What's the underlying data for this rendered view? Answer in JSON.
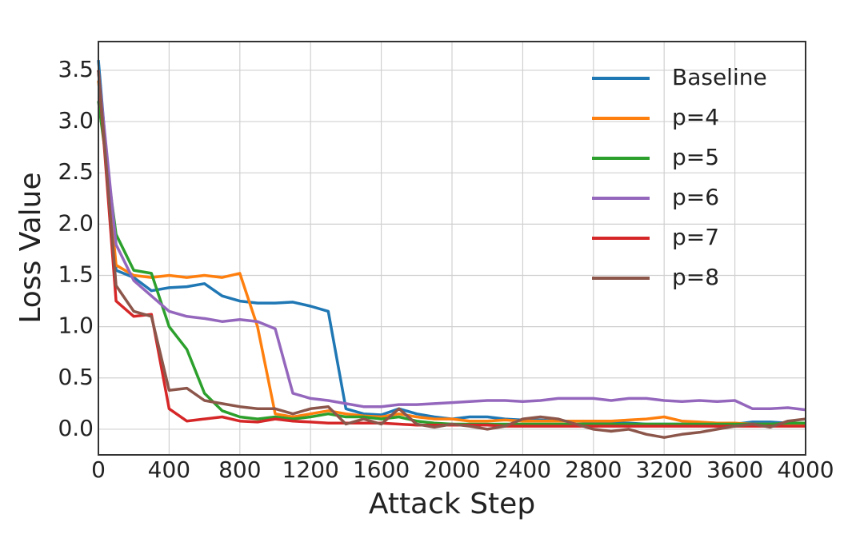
{
  "chart_data": {
    "type": "line",
    "xlabel": "Attack Step",
    "ylabel": "Loss Value",
    "x": [
      0,
      100,
      200,
      300,
      400,
      500,
      600,
      700,
      800,
      900,
      1000,
      1100,
      1200,
      1300,
      1400,
      1500,
      1600,
      1700,
      1800,
      1900,
      2000,
      2100,
      2200,
      2300,
      2400,
      2500,
      2600,
      2700,
      2800,
      2900,
      3000,
      3100,
      3200,
      3300,
      3400,
      3500,
      3600,
      3700,
      3800,
      3900,
      4000
    ],
    "series": [
      {
        "name": "Baseline",
        "color": "#1f77b4",
        "values": [
          3.6,
          1.55,
          1.48,
          1.35,
          1.38,
          1.39,
          1.42,
          1.3,
          1.25,
          1.23,
          1.23,
          1.24,
          1.2,
          1.15,
          0.2,
          0.15,
          0.14,
          0.2,
          0.15,
          0.12,
          0.1,
          0.12,
          0.12,
          0.1,
          0.09,
          0.09,
          0.08,
          0.08,
          0.07,
          0.06,
          0.06,
          0.05,
          0.05,
          0.05,
          0.05,
          0.05,
          0.05,
          0.07,
          0.07,
          0.06,
          0.05
        ]
      },
      {
        "name": "p=4",
        "color": "#ff7f0e",
        "values": [
          3.4,
          1.6,
          1.5,
          1.48,
          1.5,
          1.48,
          1.5,
          1.48,
          1.52,
          1.0,
          0.15,
          0.12,
          0.15,
          0.18,
          0.15,
          0.13,
          0.12,
          0.15,
          0.12,
          0.1,
          0.1,
          0.08,
          0.08,
          0.09,
          0.08,
          0.08,
          0.08,
          0.08,
          0.08,
          0.08,
          0.09,
          0.1,
          0.12,
          0.08,
          0.07,
          0.06,
          0.06,
          0.05,
          0.05,
          0.05,
          0.05
        ]
      },
      {
        "name": "p=5",
        "color": "#2ca02c",
        "values": [
          3.2,
          1.9,
          1.55,
          1.52,
          1.0,
          0.78,
          0.35,
          0.18,
          0.12,
          0.1,
          0.12,
          0.1,
          0.12,
          0.15,
          0.12,
          0.12,
          0.1,
          0.12,
          0.08,
          0.06,
          0.05,
          0.05,
          0.05,
          0.05,
          0.05,
          0.05,
          0.05,
          0.05,
          0.05,
          0.05,
          0.05,
          0.05,
          0.05,
          0.05,
          0.05,
          0.05,
          0.05,
          0.05,
          0.05,
          0.06,
          0.06
        ]
      },
      {
        "name": "p=6",
        "color": "#9467bd",
        "values": [
          3.5,
          1.8,
          1.45,
          1.3,
          1.15,
          1.1,
          1.08,
          1.05,
          1.07,
          1.05,
          0.98,
          0.35,
          0.3,
          0.28,
          0.25,
          0.22,
          0.22,
          0.24,
          0.24,
          0.25,
          0.26,
          0.27,
          0.28,
          0.28,
          0.27,
          0.28,
          0.3,
          0.3,
          0.3,
          0.28,
          0.3,
          0.3,
          0.28,
          0.27,
          0.28,
          0.27,
          0.28,
          0.2,
          0.2,
          0.21,
          0.19
        ]
      },
      {
        "name": "p=7",
        "color": "#d62728",
        "values": [
          3.5,
          1.25,
          1.1,
          1.12,
          0.2,
          0.08,
          0.1,
          0.12,
          0.08,
          0.07,
          0.1,
          0.08,
          0.07,
          0.06,
          0.06,
          0.06,
          0.06,
          0.05,
          0.04,
          0.04,
          0.04,
          0.04,
          0.04,
          0.03,
          0.03,
          0.03,
          0.03,
          0.03,
          0.03,
          0.03,
          0.03,
          0.03,
          0.03,
          0.03,
          0.03,
          0.03,
          0.03,
          0.03,
          0.03,
          0.03,
          0.03
        ]
      },
      {
        "name": "p=8",
        "color": "#8c564b",
        "values": [
          3.5,
          1.4,
          1.15,
          1.1,
          0.38,
          0.4,
          0.28,
          0.25,
          0.22,
          0.2,
          0.2,
          0.15,
          0.2,
          0.22,
          0.05,
          0.1,
          0.05,
          0.2,
          0.05,
          0.02,
          0.05,
          0.03,
          0.0,
          0.03,
          0.1,
          0.12,
          0.1,
          0.05,
          0.0,
          -0.02,
          0.0,
          -0.05,
          -0.08,
          -0.05,
          -0.03,
          0.0,
          0.03,
          0.05,
          0.02,
          0.08,
          0.1
        ]
      }
    ],
    "xlim": [
      0,
      4000
    ],
    "xticks": [
      0,
      400,
      800,
      1200,
      1600,
      2000,
      2400,
      2800,
      3200,
      3600,
      4000
    ],
    "ylim": [
      -0.25,
      3.78
    ],
    "yticks": [
      {
        "value": 0,
        "label": "0.0"
      },
      0.5,
      {
        "value": 1,
        "label": "1.0"
      },
      1.5,
      {
        "value": 2,
        "label": "2.0"
      },
      2.5,
      {
        "value": 3,
        "label": "3.0"
      },
      3.5
    ],
    "grid": true,
    "legend": "upper right"
  }
}
